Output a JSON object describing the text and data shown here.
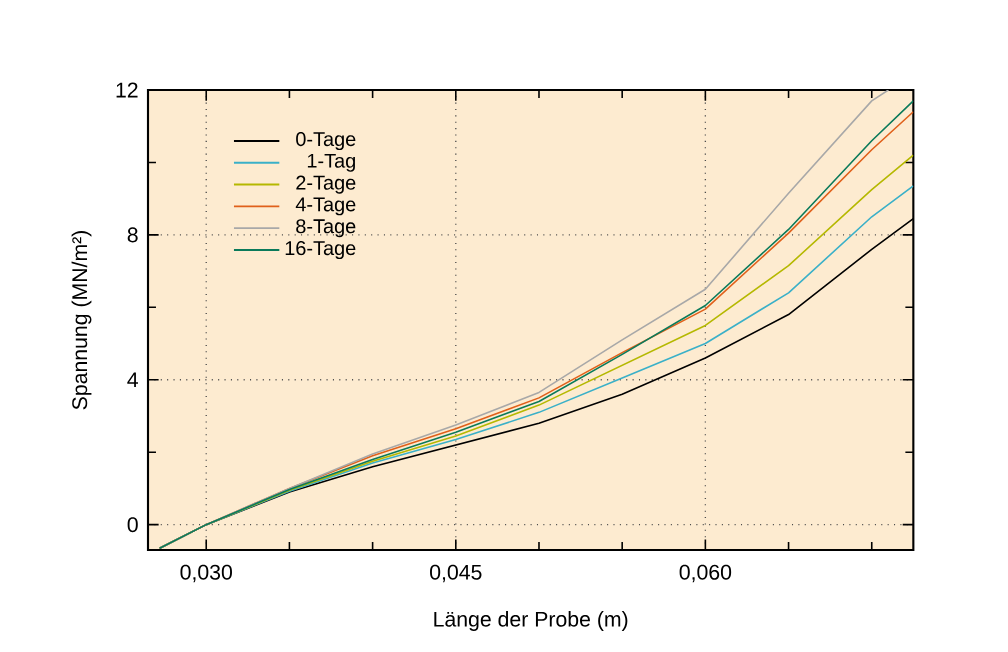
{
  "chart_data": {
    "type": "line",
    "xlabel": "Länge der Probe (m)",
    "ylabel": "Spannung (MN/m²)",
    "xlim": [
      0.0265,
      0.0725
    ],
    "ylim": [
      -0.7,
      12
    ],
    "xticks": [
      {
        "value": 0.03,
        "label": "0,030"
      },
      {
        "value": 0.035,
        "label": null
      },
      {
        "value": 0.04,
        "label": null
      },
      {
        "value": 0.045,
        "label": "0,045"
      },
      {
        "value": 0.05,
        "label": null
      },
      {
        "value": 0.055,
        "label": null
      },
      {
        "value": 0.06,
        "label": "0,060"
      },
      {
        "value": 0.065,
        "label": null
      },
      {
        "value": 0.07,
        "label": null
      }
    ],
    "yticks": [
      0,
      {
        "value": 2,
        "label": null
      },
      4,
      {
        "value": 6,
        "label": null
      },
      8,
      {
        "value": 10,
        "label": null
      },
      12
    ],
    "grid": true,
    "legend": "top left",
    "marker": "none",
    "line_style": "solid",
    "series": [
      {
        "name": "0-Tage",
        "color": "#000000",
        "x": [
          0.0272,
          0.03,
          0.035,
          0.04,
          0.045,
          0.05,
          0.055,
          0.06,
          0.065,
          0.07,
          0.0725
        ],
        "values": [
          -0.65,
          0,
          0.9,
          1.6,
          2.2,
          2.8,
          3.6,
          4.6,
          5.8,
          7.6,
          8.45
        ]
      },
      {
        "name": "1-Tag",
        "color": "#3ab0c8",
        "x": [
          0.0272,
          0.03,
          0.035,
          0.04,
          0.045,
          0.05,
          0.055,
          0.06,
          0.065,
          0.07,
          0.0725
        ],
        "values": [
          -0.65,
          0,
          0.92,
          1.7,
          2.35,
          3.1,
          4.05,
          5.0,
          6.4,
          8.5,
          9.35
        ]
      },
      {
        "name": "2-Tage",
        "color": "#b5b800",
        "x": [
          0.0272,
          0.03,
          0.035,
          0.04,
          0.045,
          0.05,
          0.055,
          0.06,
          0.065,
          0.07,
          0.0725
        ],
        "values": [
          -0.65,
          0,
          0.95,
          1.75,
          2.45,
          3.3,
          4.4,
          5.5,
          7.15,
          9.25,
          10.2
        ]
      },
      {
        "name": "4-Tage",
        "color": "#e0601a",
        "x": [
          0.0272,
          0.03,
          0.035,
          0.04,
          0.045,
          0.05,
          0.055,
          0.06,
          0.065,
          0.07,
          0.0725
        ],
        "values": [
          -0.65,
          0,
          1.0,
          1.9,
          2.65,
          3.5,
          4.75,
          5.95,
          8.05,
          10.35,
          11.4
        ]
      },
      {
        "name": "8-Tage",
        "color": "#a8a8a8",
        "x": [
          0.0272,
          0.03,
          0.035,
          0.04,
          0.045,
          0.05,
          0.055,
          0.06,
          0.065,
          0.07,
          0.071
        ],
        "values": [
          -0.65,
          0,
          1.0,
          1.95,
          2.75,
          3.65,
          5.1,
          6.5,
          9.15,
          11.7,
          12
        ]
      },
      {
        "name": "16-Tage",
        "color": "#0a7a5a",
        "x": [
          0.0272,
          0.03,
          0.035,
          0.04,
          0.045,
          0.05,
          0.055,
          0.06,
          0.065,
          0.07,
          0.0725
        ],
        "values": [
          -0.65,
          0,
          0.97,
          1.8,
          2.55,
          3.4,
          4.7,
          6.05,
          8.15,
          10.6,
          11.7
        ]
      }
    ]
  }
}
